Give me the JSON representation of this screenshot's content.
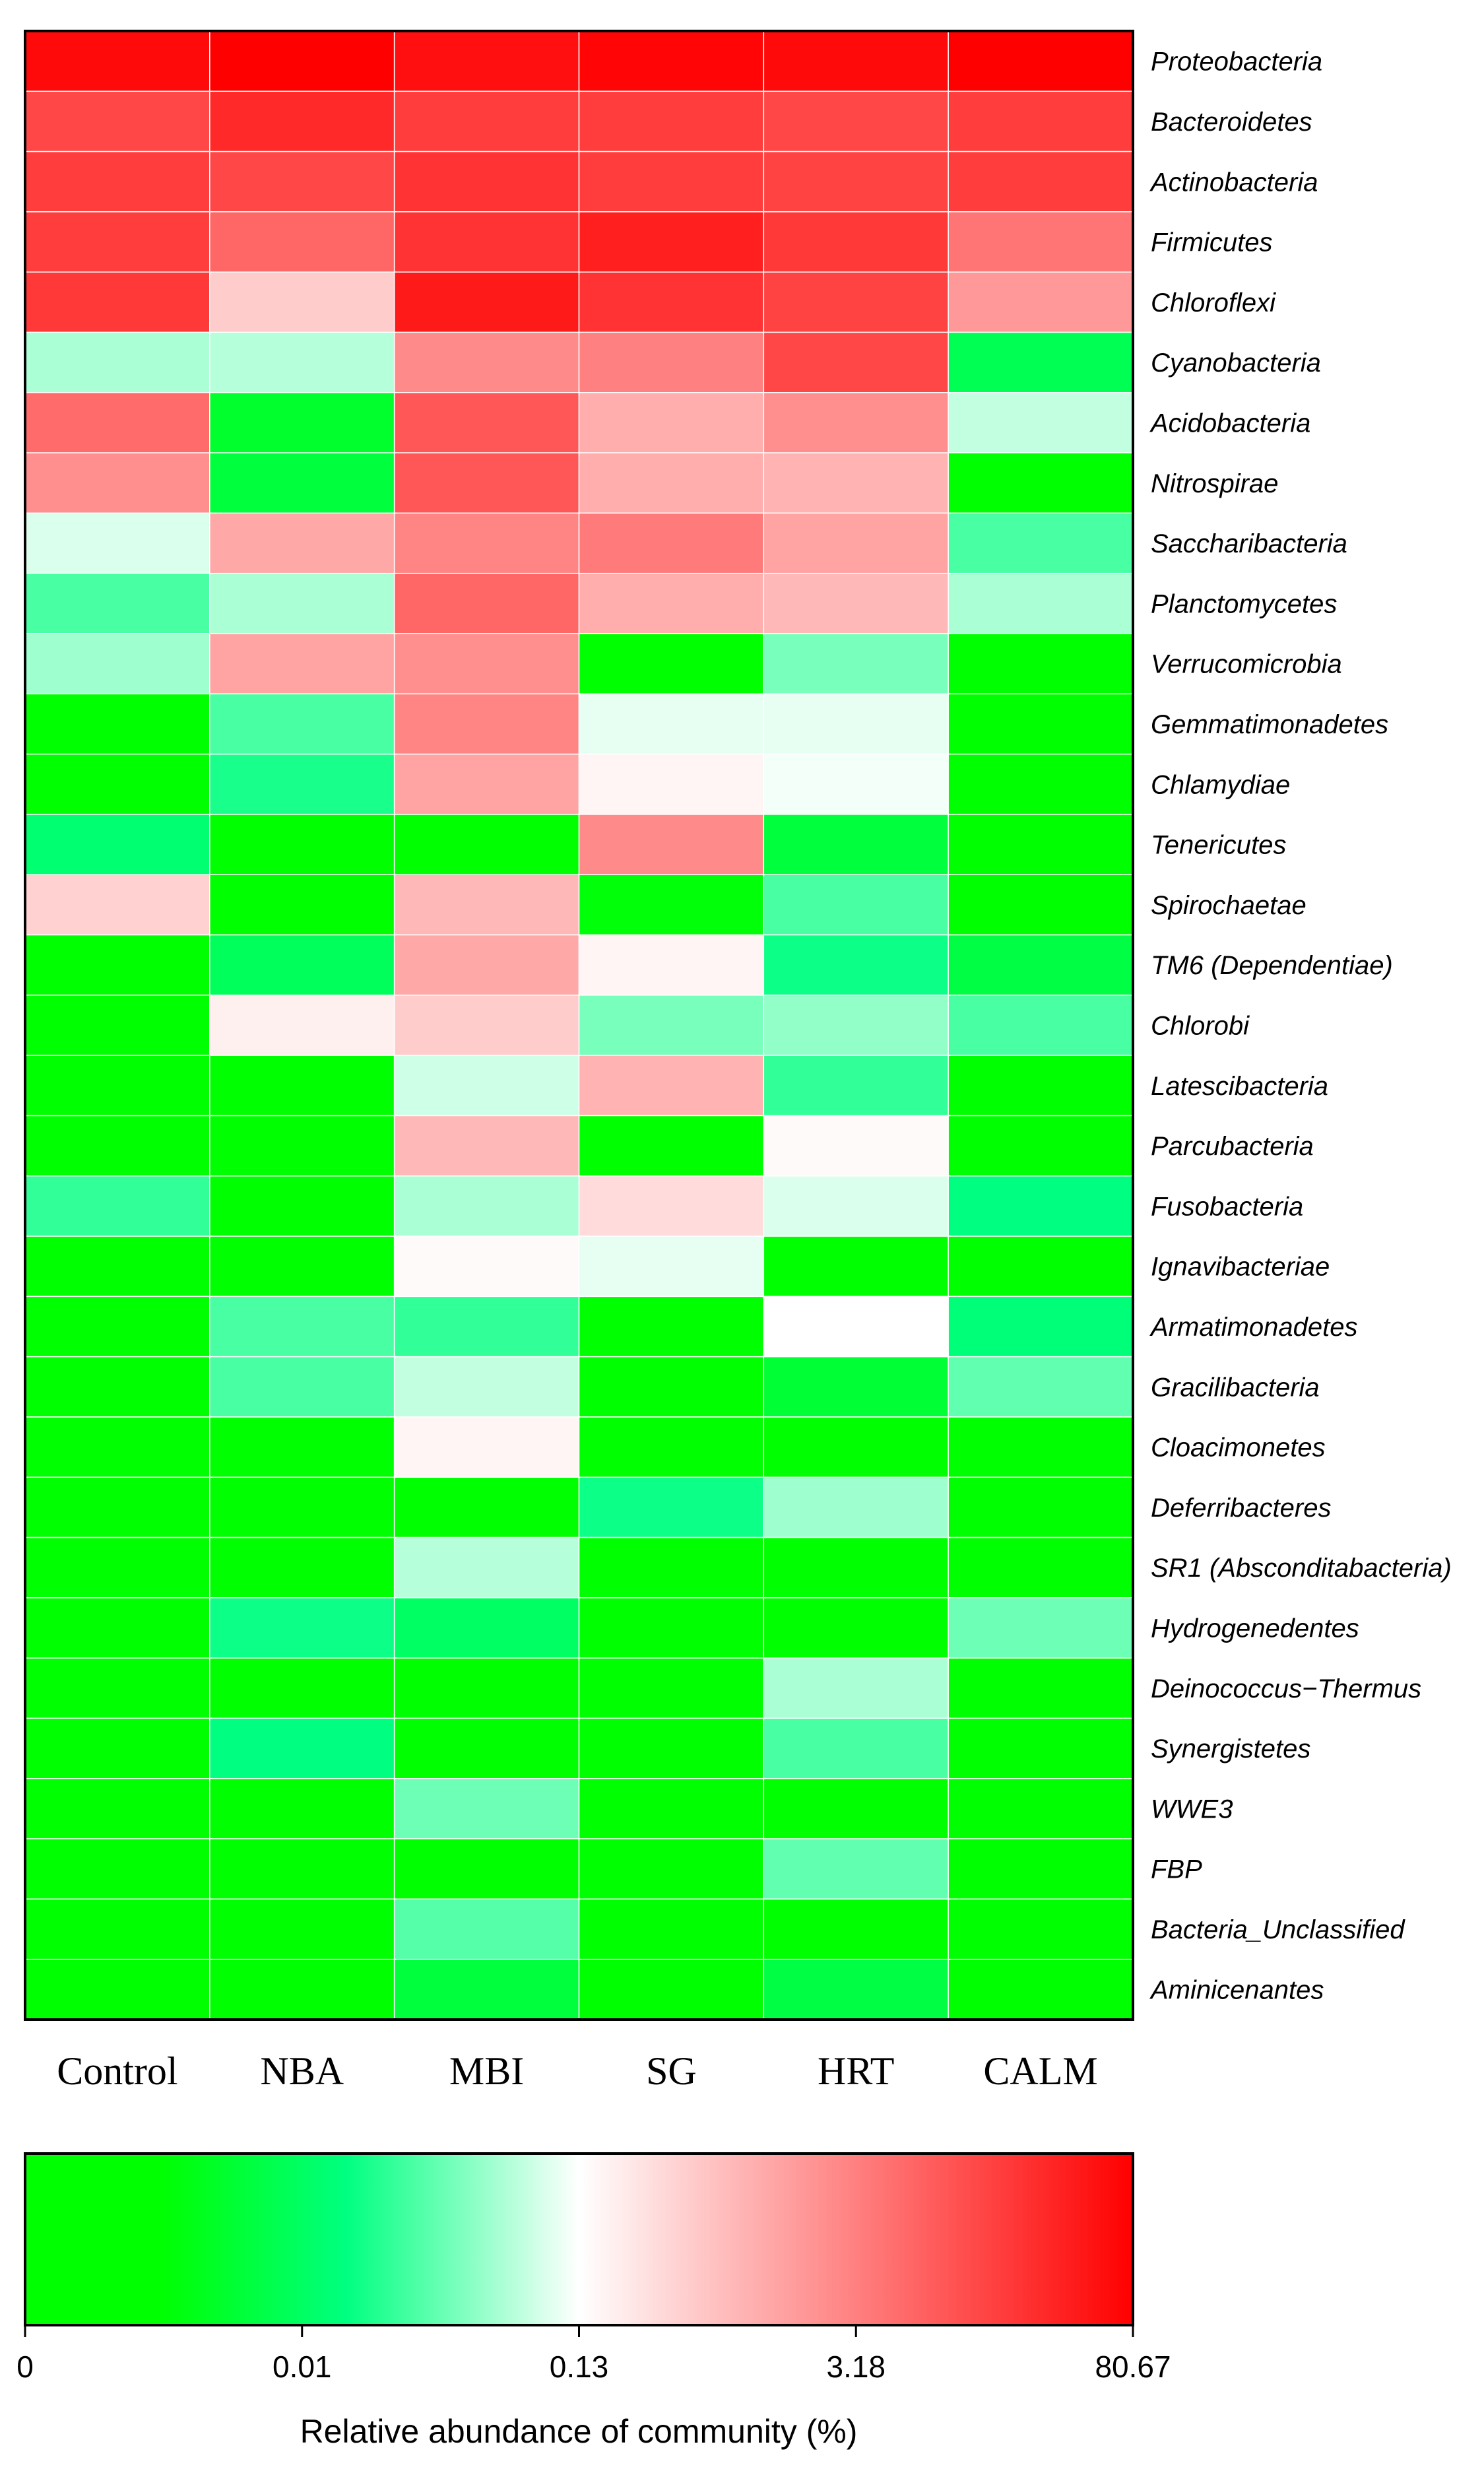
{
  "chart_data": {
    "type": "heatmap",
    "columns": [
      "Control",
      "NBA",
      "MBI",
      "SG",
      "HRT",
      "CALM"
    ],
    "rows": [
      "Proteobacteria",
      "Bacteroidetes",
      "Actinobacteria",
      "Firmicutes",
      "Chloroflexi",
      "Cyanobacteria",
      "Acidobacteria",
      "Nitrospirae",
      "Saccharibacteria",
      "Planctomycetes",
      "Verrucomicrobia",
      "Gemmatimonadetes",
      "Chlamydiae",
      "Tenericutes",
      "Spirochaetae",
      "TM6 (Dependentiae)",
      "Chlorobi",
      "Latescibacteria",
      "Parcubacteria",
      "Fusobacteria",
      "Ignavibacteriae",
      "Armatimonadetes",
      "Gracilibacteria",
      "Cloacimonetes",
      "Deferribacteres",
      "SR1 (Absconditabacteria)",
      "Hydrogenedentes",
      "Deinococcus−Thermus",
      "Synergistetes",
      "WWE3",
      "FBP",
      "Bacteria_Unclassified",
      "Aminicenantes"
    ],
    "scale_positions": [
      0,
      0.25,
      0.5,
      0.75,
      1
    ],
    "values": [
      [
        0.98,
        1.0,
        0.97,
        0.99,
        0.98,
        1.0
      ],
      [
        0.86,
        0.92,
        0.88,
        0.88,
        0.86,
        0.88
      ],
      [
        0.88,
        0.86,
        0.9,
        0.88,
        0.87,
        0.88
      ],
      [
        0.88,
        0.8,
        0.9,
        0.94,
        0.89,
        0.77
      ],
      [
        0.89,
        0.6,
        0.95,
        0.9,
        0.87,
        0.7
      ],
      [
        0.43,
        0.44,
        0.73,
        0.75,
        0.86,
        0.23
      ],
      [
        0.79,
        0.18,
        0.83,
        0.66,
        0.72,
        0.45
      ],
      [
        0.72,
        0.2,
        0.83,
        0.66,
        0.65,
        0.0
      ],
      [
        0.47,
        0.67,
        0.74,
        0.76,
        0.68,
        0.35
      ],
      [
        0.35,
        0.43,
        0.8,
        0.66,
        0.64,
        0.43
      ],
      [
        0.42,
        0.68,
        0.72,
        0.0,
        0.39,
        0.0
      ],
      [
        0.0,
        0.35,
        0.74,
        0.48,
        0.48,
        0.0
      ],
      [
        0.0,
        0.31,
        0.68,
        0.52,
        0.49,
        0.0
      ],
      [
        0.27,
        0.0,
        0.0,
        0.73,
        0.2,
        0.0
      ],
      [
        0.59,
        0.0,
        0.64,
        0.13,
        0.35,
        0.0
      ],
      [
        0.0,
        0.24,
        0.67,
        0.52,
        0.3,
        0.21
      ],
      [
        0.0,
        0.53,
        0.6,
        0.39,
        0.41,
        0.35
      ],
      [
        0.0,
        0.0,
        0.46,
        0.65,
        0.33,
        0.0
      ],
      [
        0.0,
        0.0,
        0.64,
        0.0,
        0.51,
        0.0
      ],
      [
        0.33,
        0.0,
        0.43,
        0.57,
        0.47,
        0.29
      ],
      [
        0.0,
        0.0,
        0.51,
        0.48,
        0.0,
        0.0
      ],
      [
        0.0,
        0.35,
        0.33,
        0.0,
        0.5,
        0.28
      ],
      [
        0.0,
        0.35,
        0.45,
        0.0,
        0.19,
        0.37
      ],
      [
        0.0,
        0.0,
        0.52,
        0.0,
        0.0,
        0.0
      ],
      [
        0.0,
        0.0,
        0.0,
        0.3,
        0.42,
        0.0
      ],
      [
        0.0,
        0.0,
        0.44,
        0.0,
        0.0,
        0.0
      ],
      [
        0.0,
        0.3,
        0.25,
        0.0,
        0.12,
        0.38
      ],
      [
        0.0,
        0.0,
        0.0,
        0.0,
        0.43,
        0.0
      ],
      [
        0.0,
        0.29,
        0.0,
        0.0,
        0.35,
        0.0
      ],
      [
        0.0,
        0.0,
        0.38,
        0.0,
        0.0,
        0.0
      ],
      [
        0.0,
        0.0,
        0.0,
        0.0,
        0.37,
        0.0
      ],
      [
        0.0,
        0.0,
        0.36,
        0.0,
        0.0,
        0.0
      ],
      [
        0.0,
        0.0,
        0.2,
        0.0,
        0.21,
        0.0
      ]
    ],
    "colorbar": {
      "stops": [
        {
          "pos": 0.0,
          "color": "#00ff00"
        },
        {
          "pos": 0.12,
          "color": "#00ff00"
        },
        {
          "pos": 0.29,
          "color": "#00ff80"
        },
        {
          "pos": 0.5,
          "color": "#ffffff"
        },
        {
          "pos": 1.0,
          "color": "#ff0000"
        }
      ],
      "ticks": [
        "0",
        "0.01",
        "0.13",
        "3.18",
        "80.67"
      ],
      "title": "Relative abundance of community (%)"
    }
  }
}
